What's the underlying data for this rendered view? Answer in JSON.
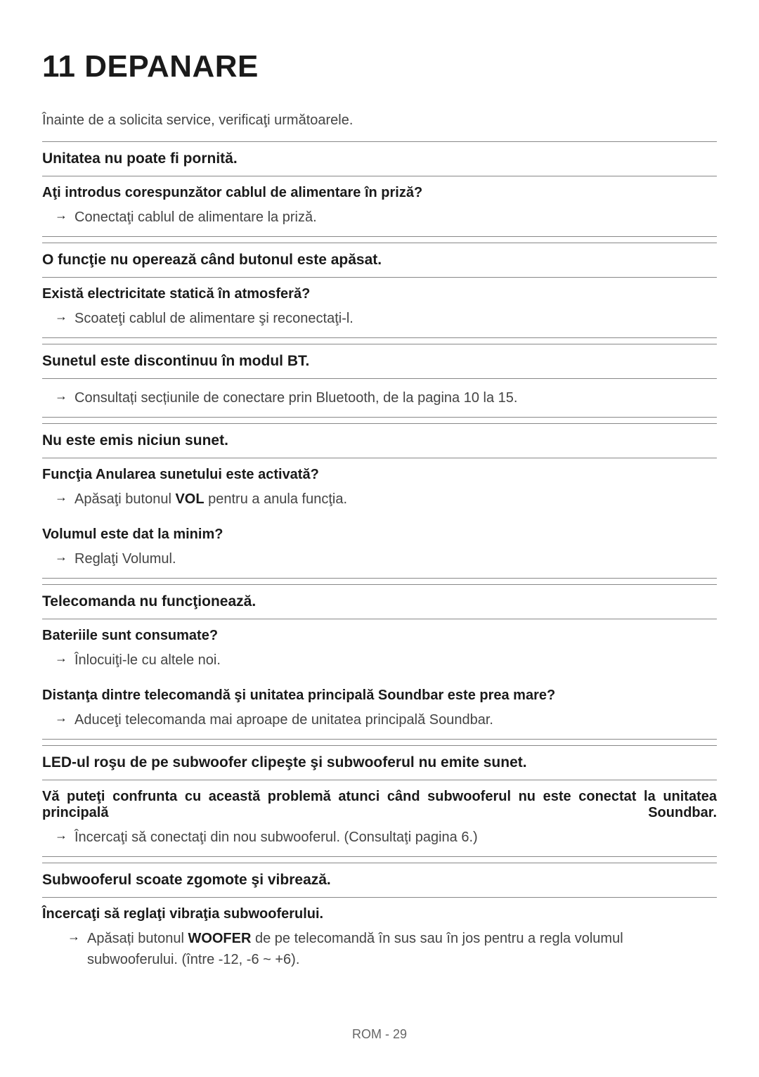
{
  "title": "11   DEPANARE",
  "intro": "Înainte de a solicita service, verificaţi următoarele.",
  "sections": [
    {
      "header": "Unitatea nu poate fi pornită.",
      "items": [
        {
          "question": "Aţi introdus corespunzător cablul de alimentare în priză?",
          "answer": "Conectaţi cablul de alimentare la priză."
        }
      ]
    },
    {
      "header": "O funcţie nu operează când butonul este apăsat.",
      "items": [
        {
          "question": "Există electricitate statică în atmosferă?",
          "answer": "Scoateţi cablul de alimentare şi reconectaţi-l."
        }
      ]
    },
    {
      "header": "Sunetul este discontinuu în modul BT.",
      "items": [
        {
          "question": null,
          "answer": "Consultați secțiunile de conectare prin Bluetooth, de la pagina 10 la 15."
        }
      ]
    },
    {
      "header": "Nu este emis niciun sunet.",
      "items": [
        {
          "question": "Funcţia Anularea sunetului este activată?",
          "answer_pre": "Apăsaţi butonul ",
          "answer_bold": "VOL",
          "answer_post": " pentru a anula funcţia.",
          "no_border": true
        },
        {
          "question": "Volumul este dat la minim?",
          "answer": "Reglaţi Volumul."
        }
      ]
    },
    {
      "header": "Telecomanda nu funcţionează.",
      "items": [
        {
          "question": "Bateriile sunt consumate?",
          "answer": "Înlocuiţi-le cu altele noi.",
          "no_border": true
        },
        {
          "question": "Distanţa dintre telecomandă şi unitatea principală Soundbar este prea mare?",
          "answer": "Aduceţi telecomanda mai aproape de unitatea principală Soundbar."
        }
      ]
    },
    {
      "header": "LED-ul roşu de pe subwoofer clipeşte şi subwooferul nu emite sunet.",
      "items": [
        {
          "question": "Vă puteţi confrunta cu această problemă atunci când subwooferul nu este conectat la unitatea principală Soundbar.",
          "question_justify": true,
          "answer": "Încercaţi să conectaţi din nou subwooferul. (Consultaţi pagina 6.)"
        }
      ]
    },
    {
      "header": "Subwooferul scoate zgomote şi vibrează.",
      "items": [
        {
          "question": "Încercaţi să reglaţi vibraţia subwooferului.",
          "answer_pre": "Apăsați butonul ",
          "answer_bold": "WOOFER",
          "answer_post": " de pe telecomandă în sus sau în jos pentru a regla volumul subwooferului. (între -12, -6 ~ +6).",
          "indent": true,
          "no_border": true
        }
      ]
    }
  ],
  "footer": "ROM - 29"
}
